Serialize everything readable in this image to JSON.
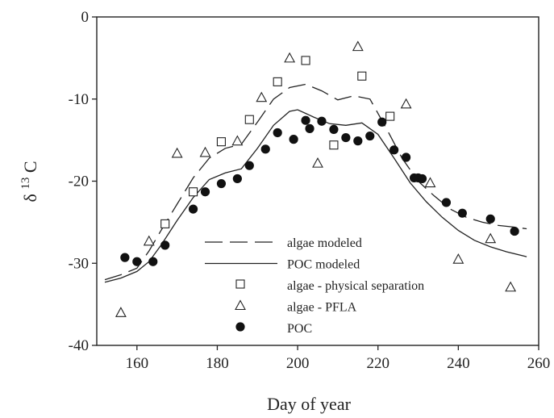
{
  "chart_data": {
    "type": "scatter",
    "title": "",
    "xlabel": "Day of year",
    "ylabel": {
      "main": "δ",
      "sup": "13",
      "tail": "C"
    },
    "xlim": [
      150,
      260
    ],
    "ylim": [
      -40,
      0
    ],
    "xticks": [
      160,
      180,
      200,
      220,
      240,
      260
    ],
    "yticks": [
      0,
      -10,
      -20,
      -30,
      -40
    ],
    "grid": false,
    "legend_position": "bottom-center",
    "series": [
      {
        "name": "algae modeled",
        "kind": "line",
        "dash": "long-dash",
        "x": [
          152,
          156,
          160,
          163,
          166,
          170,
          174,
          178,
          182,
          186,
          190,
          194,
          198,
          202,
          206,
          210,
          214,
          218,
          222,
          226,
          230,
          234,
          238,
          242,
          246,
          250,
          254,
          257
        ],
        "y": [
          -32.0,
          -31.4,
          -30.6,
          -28.5,
          -26.0,
          -22.8,
          -19.6,
          -17.2,
          -16.0,
          -15.5,
          -12.8,
          -10.0,
          -8.6,
          -8.2,
          -9.0,
          -10.1,
          -9.6,
          -10.0,
          -13.5,
          -17.2,
          -20.0,
          -21.8,
          -23.4,
          -24.4,
          -25.0,
          -25.4,
          -25.6,
          -25.8
        ]
      },
      {
        "name": "POC modeled",
        "kind": "line",
        "dash": "solid",
        "x": [
          152,
          156,
          160,
          163,
          166,
          170,
          174,
          178,
          182,
          186,
          190,
          194,
          198,
          200,
          204,
          208,
          212,
          216,
          220,
          224,
          228,
          232,
          236,
          240,
          244,
          248,
          252,
          257
        ],
        "y": [
          -32.3,
          -31.8,
          -31.0,
          -29.8,
          -27.8,
          -24.8,
          -22.0,
          -19.8,
          -19.0,
          -18.5,
          -16.0,
          -13.2,
          -11.5,
          -11.3,
          -12.2,
          -13.0,
          -13.2,
          -12.9,
          -14.3,
          -17.2,
          -20.2,
          -22.5,
          -24.4,
          -26.0,
          -27.2,
          -28.0,
          -28.6,
          -29.2
        ]
      },
      {
        "name": "algae - physical separation",
        "kind": "marker",
        "marker": "open-square",
        "x": [
          167,
          174,
          181,
          188,
          195,
          202,
          209,
          216,
          223
        ],
        "y": [
          -25.2,
          -21.3,
          -15.2,
          -12.5,
          -7.9,
          -5.3,
          -15.6,
          -7.2,
          -12.1
        ]
      },
      {
        "name": "algae - PFLA",
        "kind": "marker",
        "marker": "open-triangle",
        "x": [
          156,
          163,
          170,
          177,
          185,
          191,
          198,
          205,
          215,
          227,
          233,
          240,
          248,
          253
        ],
        "y": [
          -36.0,
          -27.3,
          -16.6,
          -16.5,
          -15.1,
          -9.8,
          -5.0,
          -17.8,
          -3.6,
          -10.6,
          -20.2,
          -29.5,
          -27.0,
          -32.9
        ]
      },
      {
        "name": "POC",
        "kind": "marker",
        "marker": "filled-circle",
        "x": [
          157,
          160,
          164,
          167,
          174,
          177,
          181,
          185,
          188,
          192,
          195,
          199,
          202,
          203,
          206,
          209,
          212,
          215,
          218,
          221,
          224,
          227,
          229,
          230,
          231,
          237,
          241,
          248,
          254
        ],
        "y": [
          -29.3,
          -29.8,
          -29.8,
          -27.8,
          -23.4,
          -21.3,
          -20.3,
          -19.7,
          -18.1,
          -16.1,
          -14.1,
          -14.9,
          -12.6,
          -13.6,
          -12.7,
          -13.7,
          -14.7,
          -15.1,
          -14.5,
          -12.8,
          -16.2,
          -17.1,
          -19.6,
          -19.6,
          -19.7,
          -22.6,
          -23.9,
          -24.6,
          -26.1
        ]
      }
    ]
  }
}
